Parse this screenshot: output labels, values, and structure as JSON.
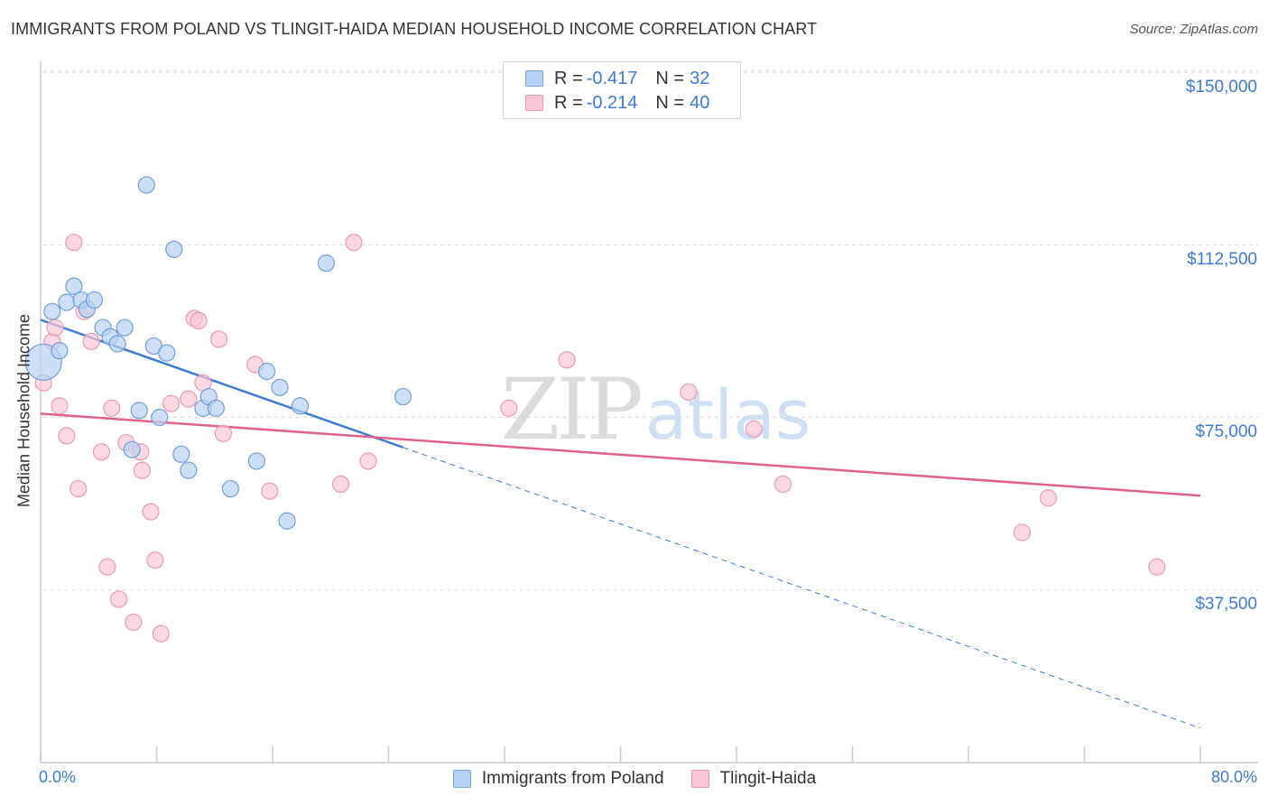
{
  "title": "IMMIGRANTS FROM POLAND VS TLINGIT-HAIDA MEDIAN HOUSEHOLD INCOME CORRELATION CHART",
  "source": "Source: ZipAtlas.com",
  "watermark": {
    "zip": "ZIP",
    "atlas": "atlas"
  },
  "colors": {
    "blue": "#3d7bd4",
    "pink": "#e0628b",
    "blue_fill": "#b8d2f3",
    "pink_fill": "#f9c7d6"
  },
  "stats": [
    {
      "r_label": "R = ",
      "r_value": "-0.417",
      "n_label": "N = ",
      "n_value": "32"
    },
    {
      "r_label": "R = ",
      "r_value": "-0.214",
      "n_label": "N = ",
      "n_value": "40"
    }
  ],
  "legend": [
    "Immigrants from Poland",
    "Tlingit-Haida"
  ],
  "chart_data": {
    "type": "scatter",
    "title": "IMMIGRANTS FROM POLAND VS TLINGIT-HAIDA MEDIAN HOUSEHOLD INCOME CORRELATION CHART",
    "xlabel": "",
    "ylabel": "Median Household Income",
    "xlim": [
      0,
      80
    ],
    "ylim": [
      0,
      155000
    ],
    "x_tick_labels": [
      "0.0%",
      "80.0%"
    ],
    "y_ticks": [
      37500,
      75000,
      112500,
      150000
    ],
    "y_tick_labels": [
      "$37,500",
      "$75,000",
      "$112,500",
      "$150,000"
    ],
    "series": [
      {
        "name": "Immigrants from Poland",
        "color": "#3d7bd4",
        "points": [
          [
            0.2,
            87000
          ],
          [
            0.8,
            98000
          ],
          [
            1.3,
            89500
          ],
          [
            1.8,
            100000
          ],
          [
            2.3,
            103500
          ],
          [
            2.8,
            100500
          ],
          [
            3.2,
            98500
          ],
          [
            3.7,
            100500
          ],
          [
            4.3,
            94500
          ],
          [
            4.8,
            92500
          ],
          [
            5.3,
            91000
          ],
          [
            5.8,
            94500
          ],
          [
            6.3,
            68000
          ],
          [
            6.8,
            76500
          ],
          [
            7.3,
            125500
          ],
          [
            7.8,
            90500
          ],
          [
            8.2,
            75000
          ],
          [
            8.7,
            89000
          ],
          [
            9.2,
            111500
          ],
          [
            9.7,
            67000
          ],
          [
            10.2,
            63500
          ],
          [
            11.2,
            77000
          ],
          [
            11.6,
            79500
          ],
          [
            12.1,
            77000
          ],
          [
            13.1,
            59500
          ],
          [
            14.9,
            65500
          ],
          [
            15.6,
            85000
          ],
          [
            16.5,
            81500
          ],
          [
            17.0,
            52500
          ],
          [
            17.9,
            77500
          ],
          [
            19.7,
            108500
          ],
          [
            25.0,
            79500
          ]
        ],
        "trend": {
          "x0": 0,
          "y0": 96200,
          "x_solid_end": 25.0,
          "x1": 80,
          "y1": 7500
        }
      },
      {
        "name": "Tlingit-Haida",
        "color": "#e0628b",
        "points": [
          [
            0.2,
            82500
          ],
          [
            0.8,
            91500
          ],
          [
            1.0,
            94500
          ],
          [
            1.3,
            77500
          ],
          [
            1.8,
            71000
          ],
          [
            2.3,
            113000
          ],
          [
            2.6,
            59500
          ],
          [
            3.0,
            98000
          ],
          [
            3.5,
            91500
          ],
          [
            4.2,
            67500
          ],
          [
            4.6,
            42500
          ],
          [
            4.9,
            77000
          ],
          [
            5.4,
            35500
          ],
          [
            5.9,
            69500
          ],
          [
            6.4,
            30500
          ],
          [
            6.9,
            67500
          ],
          [
            7.0,
            63500
          ],
          [
            7.6,
            54500
          ],
          [
            7.9,
            44000
          ],
          [
            8.3,
            28000
          ],
          [
            9.0,
            78000
          ],
          [
            10.2,
            79000
          ],
          [
            10.6,
            96500
          ],
          [
            10.9,
            96000
          ],
          [
            11.2,
            82500
          ],
          [
            12.3,
            92000
          ],
          [
            12.6,
            71500
          ],
          [
            14.8,
            86500
          ],
          [
            15.8,
            59000
          ],
          [
            20.7,
            60500
          ],
          [
            21.6,
            113000
          ],
          [
            22.6,
            65500
          ],
          [
            32.3,
            77000
          ],
          [
            36.3,
            87500
          ],
          [
            44.7,
            80500
          ],
          [
            49.2,
            72500
          ],
          [
            51.2,
            60500
          ],
          [
            67.7,
            50000
          ],
          [
            69.5,
            57500
          ],
          [
            77.0,
            42500
          ]
        ],
        "trend": {
          "x0": 0,
          "y0": 75800,
          "x1": 80,
          "y1": 58000
        }
      }
    ]
  }
}
